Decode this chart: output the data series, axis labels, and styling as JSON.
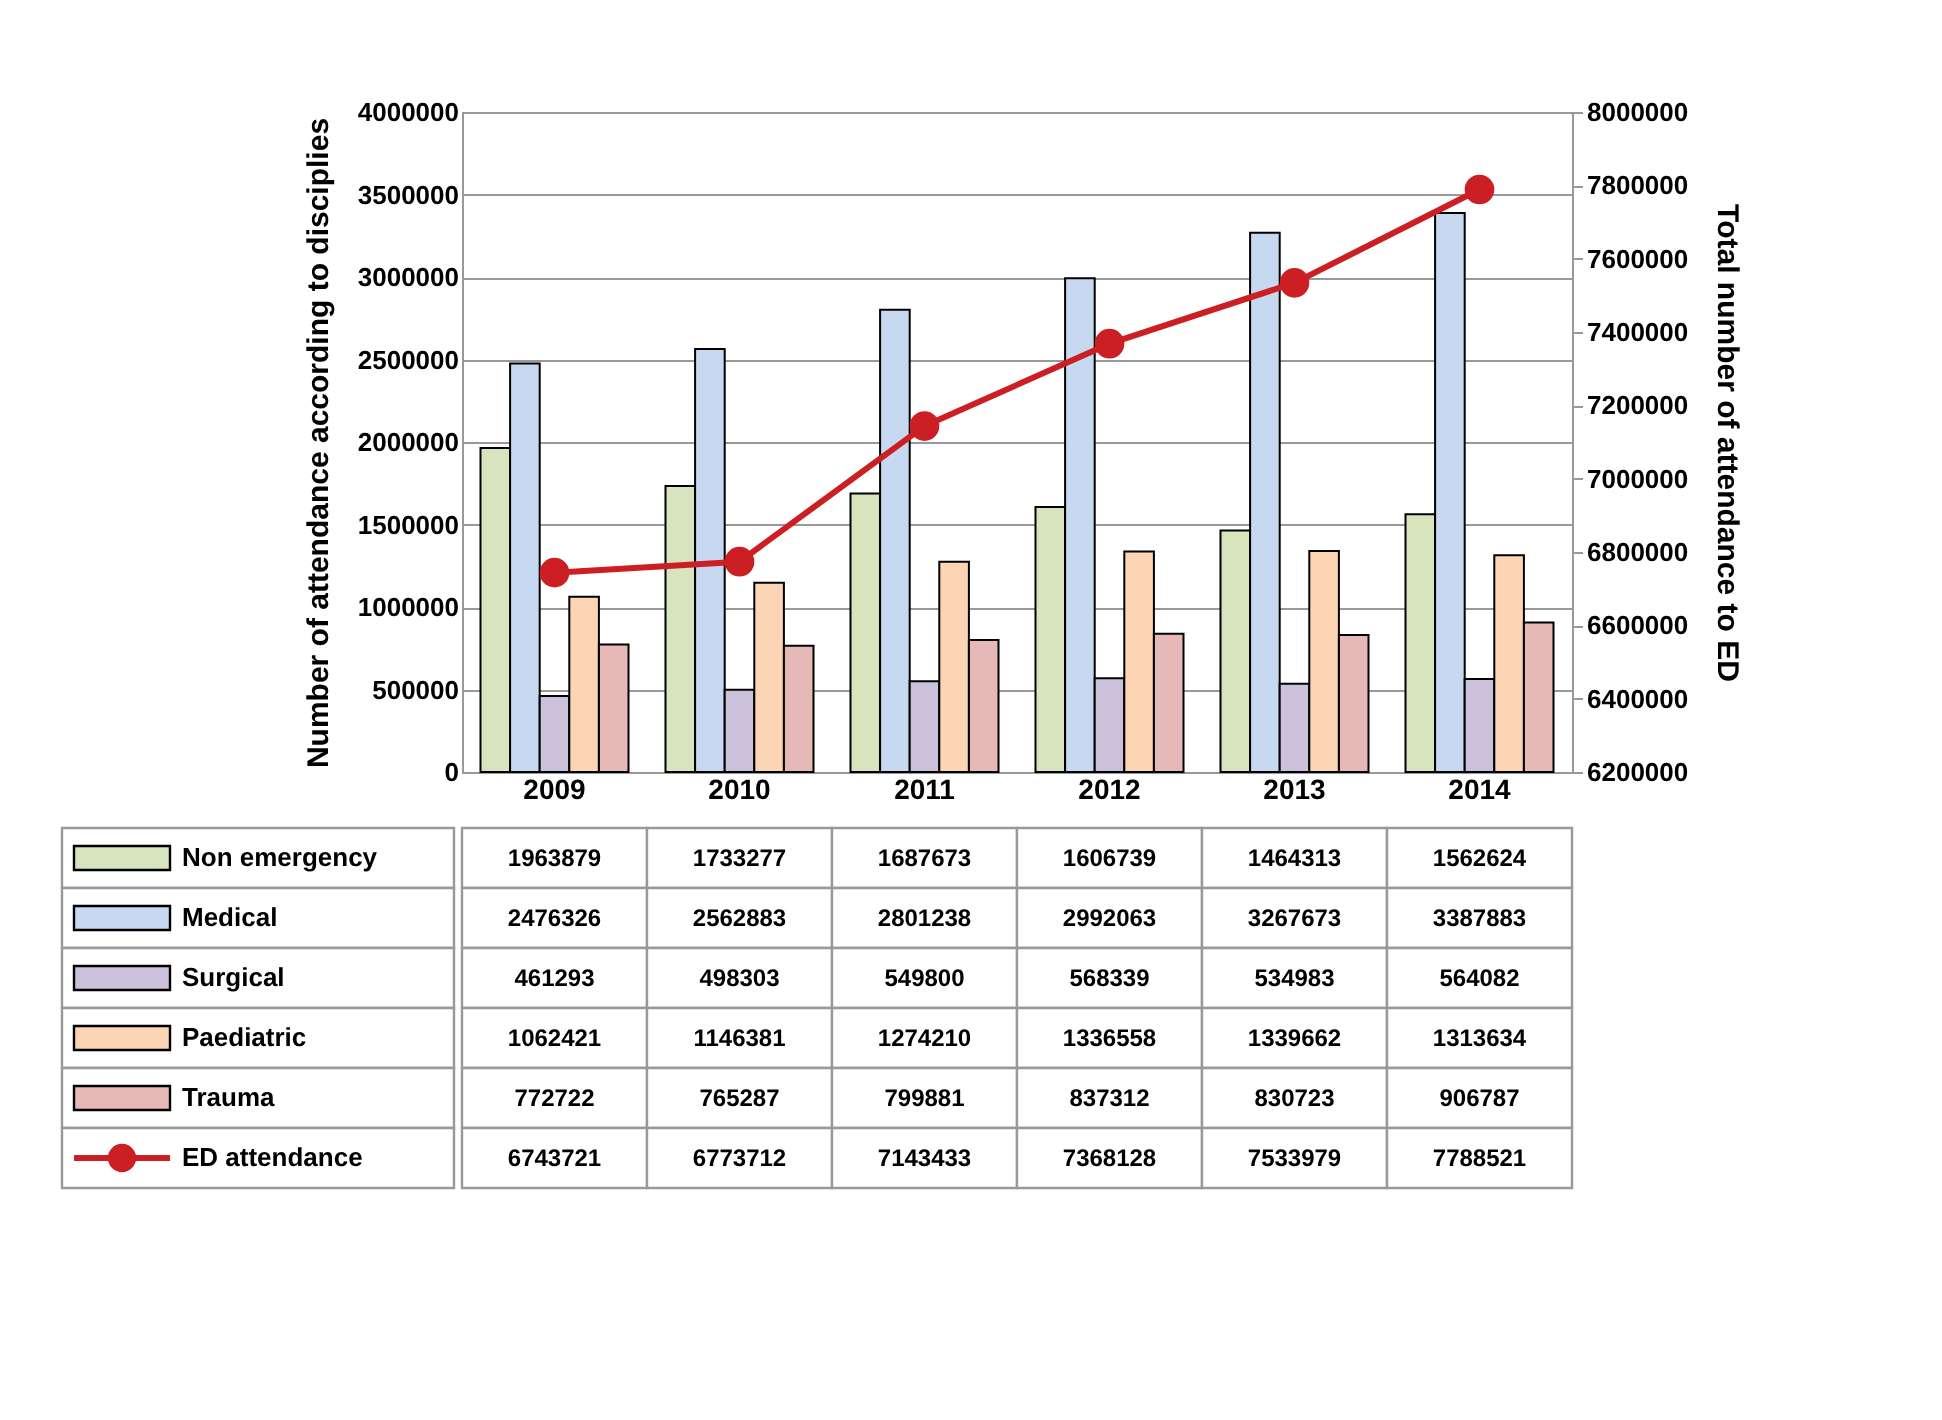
{
  "chart_data": {
    "type": "bar",
    "ylabel": "Number of attendance according to disciplies",
    "y2label": "Total number of attendance to ED",
    "categories": [
      "2009",
      "2010",
      "2011",
      "2012",
      "2013",
      "2014"
    ],
    "series": [
      {
        "name": "Non emergency",
        "color": "#d7e4bd",
        "values": [
          1963879,
          1733277,
          1687673,
          1606739,
          1464313,
          1562624
        ]
      },
      {
        "name": "Medical",
        "color": "#c6d9f1",
        "values": [
          2476326,
          2562883,
          2801238,
          2992063,
          3267673,
          3387883
        ]
      },
      {
        "name": "Surgical",
        "color": "#ccc1da",
        "values": [
          461293,
          498303,
          549800,
          568339,
          534983,
          564082
        ]
      },
      {
        "name": "Paediatric",
        "color": "#fcd5b5",
        "values": [
          1062421,
          1146381,
          1274210,
          1336558,
          1339662,
          1313634
        ]
      },
      {
        "name": "Trauma",
        "color": "#e6b9b8",
        "values": [
          772722,
          765287,
          799881,
          837312,
          830723,
          906787
        ]
      },
      {
        "name": "ED attendance",
        "color": "#cc1f24",
        "type": "line",
        "axis": "y2",
        "values": [
          6743721,
          6773712,
          7143433,
          7368128,
          7533979,
          7788521
        ]
      }
    ],
    "ylim": [
      0,
      4000000
    ],
    "yticks": [
      0,
      500000,
      1000000,
      1500000,
      2000000,
      2500000,
      3000000,
      3500000,
      4000000
    ],
    "y2lim": [
      6200000,
      8000000
    ],
    "y2ticks": [
      6200000,
      6400000,
      6600000,
      6800000,
      7000000,
      7200000,
      7400000,
      7600000,
      7800000,
      8000000
    ],
    "grid": "y",
    "legend": "bottom",
    "data_labels": true,
    "marker": "circle",
    "line_style": "solid"
  }
}
